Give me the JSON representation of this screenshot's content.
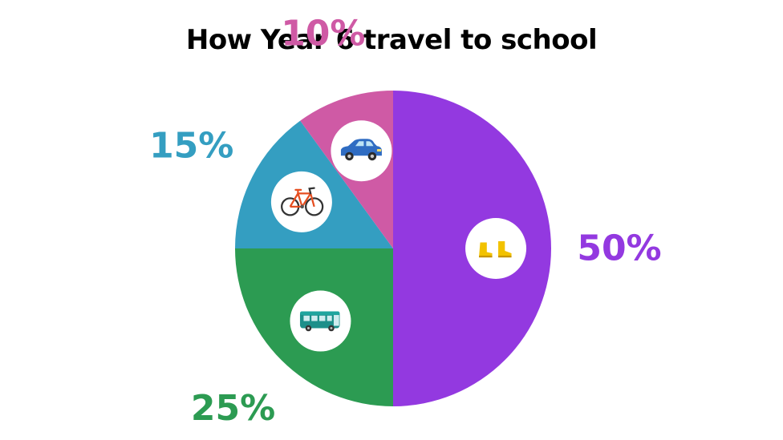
{
  "chart_data": {
    "type": "pie",
    "title": "How Year 6 travel to school",
    "slices": [
      {
        "label": "50%",
        "value": 50,
        "color": "#9339e0",
        "icon": "walking-boots-icon"
      },
      {
        "label": "25%",
        "value": 25,
        "color": "#2c9b52",
        "icon": "bus-icon"
      },
      {
        "label": "15%",
        "value": 15,
        "color": "#349ec1",
        "icon": "bicycle-icon"
      },
      {
        "label": "10%",
        "value": 10,
        "color": "#cf5aa5",
        "icon": "car-icon"
      }
    ],
    "start": "12 o'clock",
    "direction": "clockwise",
    "legend": "none"
  }
}
